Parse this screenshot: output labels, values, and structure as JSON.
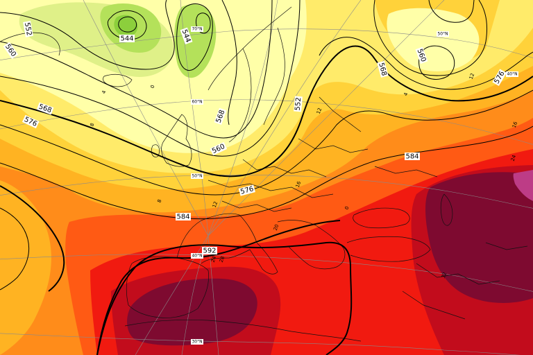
{
  "map": {
    "colors": {
      "band_lightest": "#ffffa8",
      "band_light": "#ffeb6a",
      "band_yellow": "#ffd23a",
      "band_gold": "#ffb322",
      "band_orange": "#ff8c1a",
      "band_redorange": "#ff5a14",
      "band_red": "#f11a10",
      "band_darkred": "#c20c1c",
      "band_maroon": "#7e0a30",
      "band_violet": "#bd3c86",
      "band_green": "#b4e15a",
      "band_green_dark": "#8ccf3c",
      "band_green_light": "#dff088",
      "contour": "#000000",
      "border": "#111111",
      "graticule": "#8a8a8a"
    },
    "contours": [
      {
        "id": "c544a",
        "label": "544"
      },
      {
        "id": "c544b",
        "label": "544"
      },
      {
        "id": "c552a",
        "label": "552"
      },
      {
        "id": "c552b",
        "label": "552"
      },
      {
        "id": "c560a",
        "label": "560"
      },
      {
        "id": "c560b",
        "label": "560"
      },
      {
        "id": "c560c",
        "label": "560"
      },
      {
        "id": "c568a",
        "label": "568"
      },
      {
        "id": "c568b",
        "label": "568"
      },
      {
        "id": "c568c",
        "label": "568"
      },
      {
        "id": "c576a",
        "label": "576"
      },
      {
        "id": "c576b",
        "label": "576"
      },
      {
        "id": "c576c",
        "label": "576"
      },
      {
        "id": "c584a",
        "label": "584"
      },
      {
        "id": "c584b",
        "label": "584"
      },
      {
        "id": "c592a",
        "label": "592"
      }
    ],
    "latitude_labels": [
      {
        "id": "lat70w",
        "text": "70°N"
      },
      {
        "id": "lat60",
        "text": "60°N"
      },
      {
        "id": "lat50w",
        "text": "50°N"
      },
      {
        "id": "lat50e",
        "text": "50°N"
      },
      {
        "id": "lat40w",
        "text": "40°N"
      },
      {
        "id": "lat40e",
        "text": "40°N"
      },
      {
        "id": "lat30",
        "text": "30°N"
      }
    ],
    "temperature_labels": [
      {
        "id": "t4",
        "text": "4"
      },
      {
        "id": "t8",
        "text": "8"
      },
      {
        "id": "t12a",
        "text": "12"
      },
      {
        "id": "t12b",
        "text": "12"
      },
      {
        "id": "t16a",
        "text": "16"
      },
      {
        "id": "t16b",
        "text": "16"
      },
      {
        "id": "t20",
        "text": "20"
      },
      {
        "id": "t24a",
        "text": "24"
      },
      {
        "id": "t24b",
        "text": "24"
      },
      {
        "id": "t28",
        "text": "28"
      },
      {
        "id": "t32",
        "text": "32"
      },
      {
        "id": "t0",
        "text": "0"
      },
      {
        "id": "t4b",
        "text": "4"
      },
      {
        "id": "t8b",
        "text": "8"
      },
      {
        "id": "t0b",
        "text": "0"
      },
      {
        "id": "t12c",
        "text": "12"
      }
    ]
  }
}
